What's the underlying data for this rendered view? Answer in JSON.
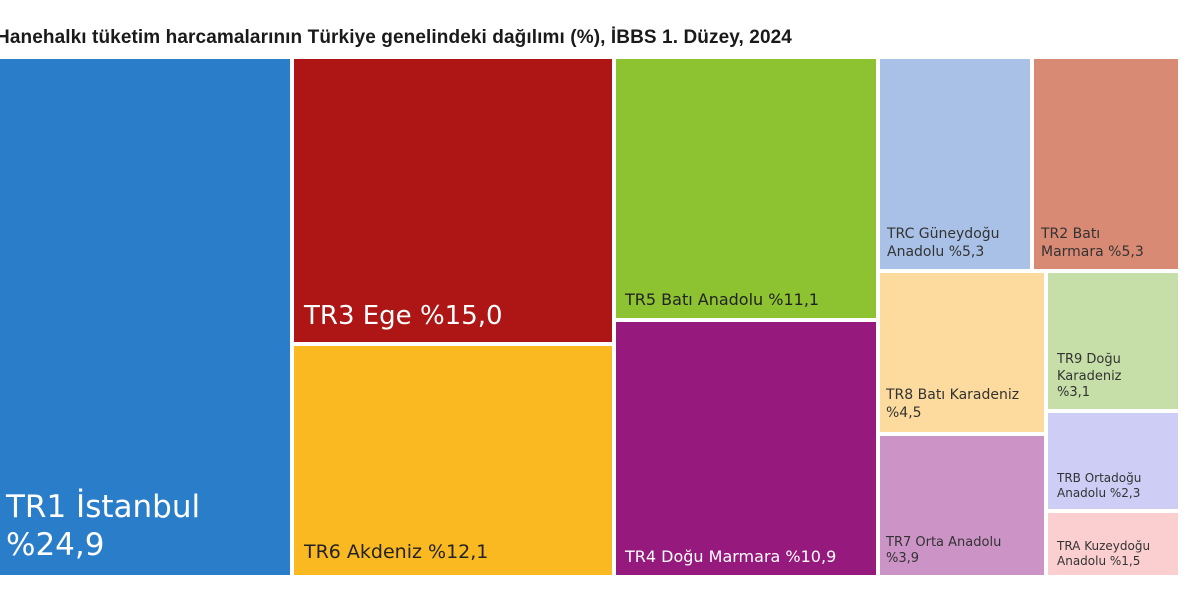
{
  "title": "Hanehalkı tüketim harcamalarının Türkiye genelindeki dağılımı (%), İBBS 1. Düzey, 2024",
  "chart_data": {
    "type": "treemap",
    "title": "Hanehalkı tüketim harcamalarının Türkiye genelindeki dağılımı (%), İBBS 1. Düzey, 2024",
    "unit": "%",
    "items": [
      {
        "id": "tr1",
        "lines": [
          "TR1 İstanbul",
          "%24,9"
        ],
        "value": 24.9,
        "color": "#2a7dc8"
      },
      {
        "id": "tr3",
        "lines": [
          "TR3 Ege %15,0"
        ],
        "value": 15.0,
        "color": "#ae1616"
      },
      {
        "id": "tr6",
        "lines": [
          "TR6 Akdeniz %12,1"
        ],
        "value": 12.1,
        "color": "#fbb921"
      },
      {
        "id": "tr5",
        "lines": [
          "TR5 Batı Anadolu %11,1"
        ],
        "value": 11.1,
        "color": "#8dc230"
      },
      {
        "id": "tr4",
        "lines": [
          "TR4 Doğu Marmara %10,9"
        ],
        "value": 10.9,
        "color": "#961a7d"
      },
      {
        "id": "trc",
        "lines": [
          "TRC Güneydoğu",
          "Anadolu %5,3"
        ],
        "value": 5.3,
        "color": "#a9c1e6"
      },
      {
        "id": "tr2",
        "lines": [
          "TR2 Batı",
          "Marmara %5,3"
        ],
        "value": 5.3,
        "color": "#d98a74"
      },
      {
        "id": "tr8",
        "lines": [
          "TR8 Batı Karadeniz",
          "%4,5"
        ],
        "value": 4.5,
        "color": "#fddb9e"
      },
      {
        "id": "tr7",
        "lines": [
          "TR7 Orta Anadolu",
          "%3,9"
        ],
        "value": 3.9,
        "color": "#cb93c6"
      },
      {
        "id": "tr9",
        "lines": [
          "TR9 Doğu",
          "Karadeniz",
          "%3,1"
        ],
        "value": 3.1,
        "color": "#c6dea7"
      },
      {
        "id": "trb",
        "lines": [
          "TRB Ortadoğu",
          "Anadolu %2,3"
        ],
        "value": 2.3,
        "color": "#cdcdf6"
      },
      {
        "id": "tra",
        "lines": [
          "TRA Kuzeydoğu",
          "Anadolu %1,5"
        ],
        "value": 1.5,
        "color": "#fbcfd0"
      }
    ]
  }
}
